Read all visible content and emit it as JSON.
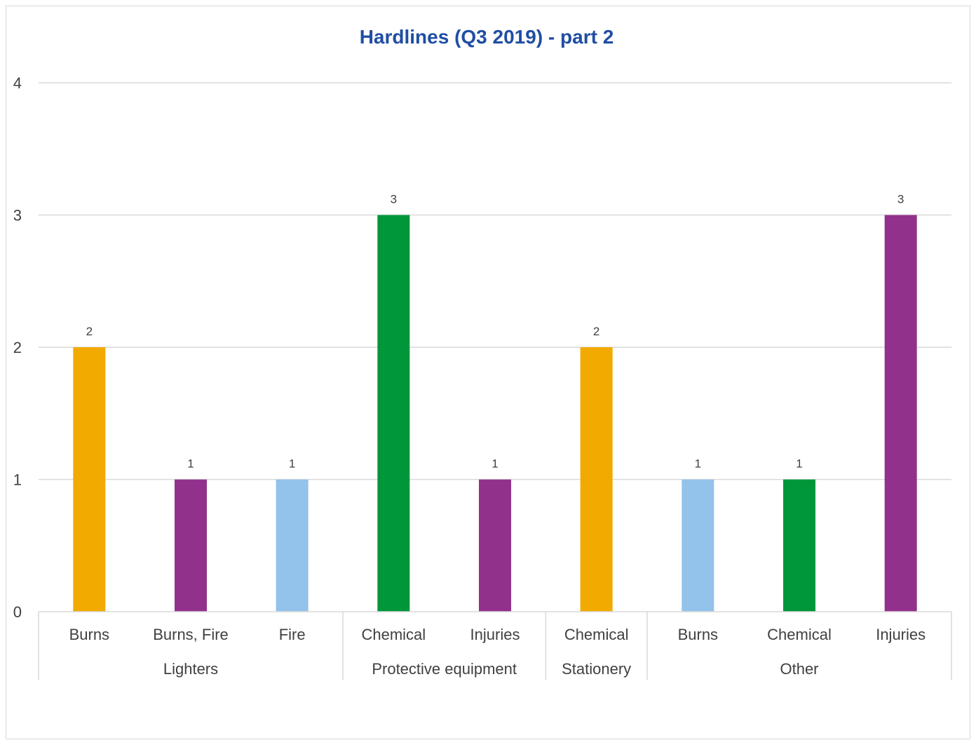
{
  "chart_data": {
    "type": "bar",
    "title": "Hardlines (Q3 2019) - part 2",
    "title_color": "#1f4ea3",
    "ylim": [
      0,
      4
    ],
    "yticks": [
      0,
      1,
      2,
      3,
      4
    ],
    "grid": true,
    "legend": "none",
    "groups": [
      {
        "name": "Lighters",
        "items": [
          {
            "label": "Burns",
            "value": 2,
            "color": "#f2a900"
          },
          {
            "label": "Burns, Fire",
            "value": 1,
            "color": "#92318c"
          },
          {
            "label": "Fire",
            "value": 1,
            "color": "#93c2ea"
          }
        ]
      },
      {
        "name": "Protective equipment",
        "items": [
          {
            "label": "Chemical",
            "value": 3,
            "color": "#00963a"
          },
          {
            "label": "Injuries",
            "value": 1,
            "color": "#92318c"
          }
        ]
      },
      {
        "name": "Stationery",
        "items": [
          {
            "label": "Chemical",
            "value": 2,
            "color": "#f2a900"
          }
        ]
      },
      {
        "name": "Other",
        "items": [
          {
            "label": "Burns",
            "value": 1,
            "color": "#93c2ea"
          },
          {
            "label": "Chemical",
            "value": 1,
            "color": "#00963a"
          },
          {
            "label": "Injuries",
            "value": 3,
            "color": "#92318c"
          }
        ]
      }
    ]
  }
}
